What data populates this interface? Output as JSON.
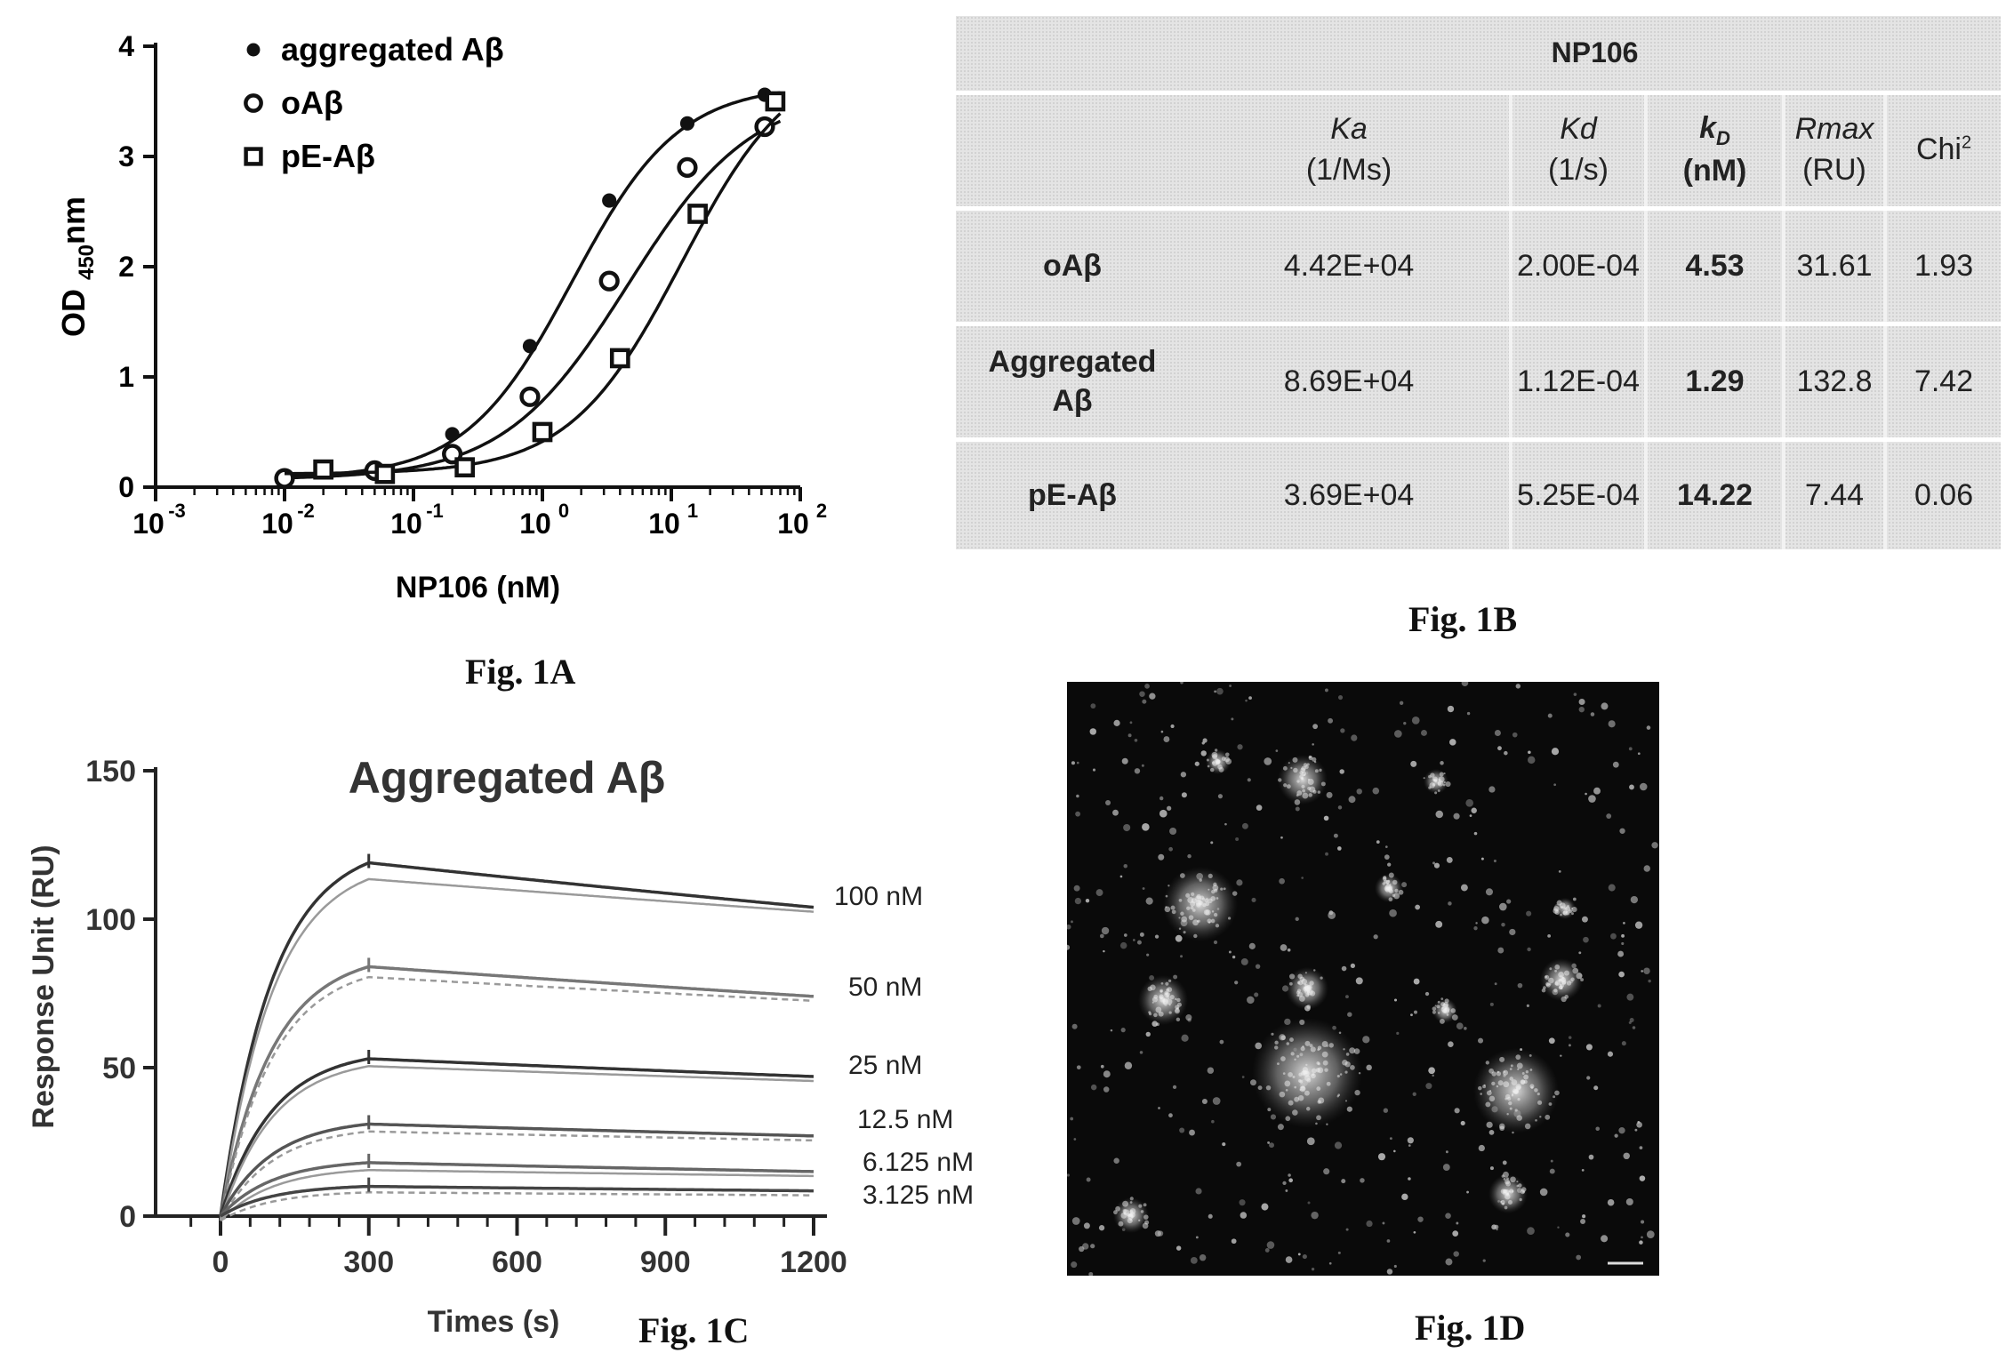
{
  "fig_labels": {
    "a": "Fig. 1A",
    "b": "Fig. 1B",
    "c": "Fig. 1C",
    "d": "Fig. 1D"
  },
  "chart_data": [
    {
      "id": "fig1a",
      "type": "scatter",
      "xscale": "log",
      "xlim": [
        0.001,
        100
      ],
      "ylim": [
        0,
        4
      ],
      "xlabel": "NP106 (nM)",
      "ylabel": "OD",
      "ylabel_sub": "450",
      "ylabel_suffix": "nm",
      "xticks": [
        "10",
        "10",
        "10",
        "10",
        "10",
        "10"
      ],
      "xtick_exponents": [
        "-3",
        "-2",
        "-1",
        "0",
        "1",
        "2"
      ],
      "yticks": [
        "0",
        "1",
        "2",
        "3",
        "4"
      ],
      "legend_position": "top-left",
      "series": [
        {
          "name": "aggregated Aβ",
          "marker": "filled-circle",
          "x": [
            0.01,
            0.05,
            0.2,
            0.8,
            3.3,
            13.3,
            53
          ],
          "y": [
            0.1,
            0.17,
            0.48,
            1.28,
            2.6,
            3.3,
            3.56
          ],
          "fit_ec50": 1.7,
          "fit_top": 3.65,
          "fit_bottom": 0.08,
          "fit_hill": 1.05
        },
        {
          "name": "oAβ",
          "marker": "open-circle",
          "x": [
            0.01,
            0.05,
            0.2,
            0.8,
            3.3,
            13.3,
            53
          ],
          "y": [
            0.08,
            0.15,
            0.3,
            0.82,
            1.87,
            2.9,
            3.27
          ],
          "fit_ec50": 4.6,
          "fit_top": 3.6,
          "fit_bottom": 0.07,
          "fit_hill": 0.9
        },
        {
          "name": "pE-Aβ",
          "marker": "open-square",
          "x": [
            0.02,
            0.06,
            0.25,
            1.0,
            4.0,
            16,
            64
          ],
          "y": [
            0.16,
            0.12,
            0.18,
            0.5,
            1.17,
            2.48,
            3.5
          ],
          "fit_ec50": 12.0,
          "fit_top": 3.95,
          "fit_bottom": 0.12,
          "fit_hill": 1.0
        }
      ]
    },
    {
      "id": "fig1b",
      "type": "table",
      "group_header": "NP106",
      "columns": [
        {
          "name": "Ka",
          "unit": "(1/Ms)"
        },
        {
          "name": "Kd",
          "unit": "(1/s)"
        },
        {
          "name": "k",
          "sub": "D",
          "unit": "(nM)"
        },
        {
          "name": "Rmax",
          "unit": "(RU)"
        },
        {
          "name": "Chi",
          "sup": "2",
          "unit": ""
        }
      ],
      "rows": [
        {
          "label": "oAβ",
          "values": [
            "4.42E+04",
            "2.00E-04",
            "4.53",
            "31.61",
            "1.93"
          ]
        },
        {
          "label_line1": "Aggregated",
          "label_line2": "Aβ",
          "values": [
            "8.69E+04",
            "1.12E-04",
            "1.29",
            "132.8",
            "7.42"
          ]
        },
        {
          "label": "pE-Aβ",
          "values": [
            "3.69E+04",
            "5.25E-04",
            "14.22",
            "7.44",
            "0.06"
          ]
        }
      ]
    },
    {
      "id": "fig1c",
      "type": "line",
      "title": "Aggregated Aβ",
      "xlabel": "Times (s)",
      "ylabel": "Response Unit (RU)",
      "xlim": [
        -100,
        1250
      ],
      "ylim": [
        0,
        150
      ],
      "xticks": [
        "0",
        "300",
        "600",
        "900",
        "1200"
      ],
      "yticks": [
        "0",
        "50",
        "100",
        "150"
      ],
      "association_end_s": 300,
      "series": [
        {
          "name": "100 nM",
          "rmax_assoc": 119,
          "fit_peak": 115,
          "end": 104,
          "color": "#333333"
        },
        {
          "name": "50 nM",
          "rmax_assoc": 84,
          "fit_peak": 82,
          "end": 74,
          "color": "#777777"
        },
        {
          "name": "25 nM",
          "rmax_assoc": 53,
          "fit_peak": 52,
          "end": 47,
          "color": "#333333"
        },
        {
          "name": "12.5 nM",
          "rmax_assoc": 31,
          "fit_peak": 30,
          "end": 27,
          "color": "#555555"
        },
        {
          "name": "6.125 nM",
          "rmax_assoc": 18,
          "fit_peak": 17,
          "end": 15,
          "color": "#666666"
        },
        {
          "name": "3.125 nM",
          "rmax_assoc": 10,
          "fit_peak": 9.5,
          "end": 8.5,
          "color": "#444444"
        }
      ]
    }
  ]
}
